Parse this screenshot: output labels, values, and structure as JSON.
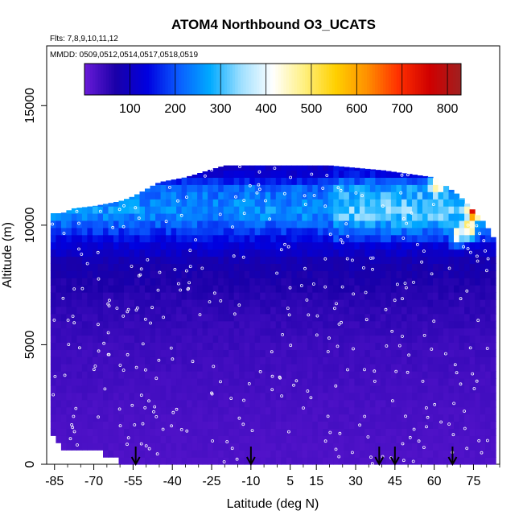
{
  "chart_data": {
    "type": "heatmap",
    "title": "ATOM4 Northbound O3_UCATS",
    "flights_label": "Flts: 7,8,9,10,11,12",
    "dates_label": "MMDD: 0509,0512,0514,0517,0518,0519",
    "xlabel": "Latitude (deg N)",
    "ylabel": "Altitude (m)",
    "xlim": [
      -88,
      85
    ],
    "ylim": [
      0,
      17500
    ],
    "x_ticks": [
      -85,
      -70,
      -55,
      -40,
      -25,
      -10,
      5,
      15,
      30,
      45,
      60,
      75
    ],
    "y_ticks": [
      0,
      5000,
      10000,
      15000
    ],
    "colorbar": {
      "range": [
        0,
        830
      ],
      "ticks": [
        100,
        200,
        300,
        400,
        500,
        600,
        700,
        800
      ],
      "colors": [
        "#6a1bd8",
        "#1a00a8",
        "#0000e0",
        "#0a5cff",
        "#00aaff",
        "#a0e0ff",
        "#ffffff",
        "#fff080",
        "#ffd000",
        "#ff9000",
        "#ff3000",
        "#d00000",
        "#a02020"
      ]
    },
    "arrows_lat": [
      -54,
      -10,
      39,
      45,
      67
    ],
    "coverage_profile": [
      {
        "lat": -86.5,
        "top": 10500,
        "bottom": 1500
      },
      {
        "lat": -82,
        "top": 10500,
        "bottom": 800
      },
      {
        "lat": -78,
        "top": 10700,
        "bottom": 800
      },
      {
        "lat": -70,
        "top": 10800,
        "bottom": 700
      },
      {
        "lat": -60,
        "top": 11000,
        "bottom": 300
      },
      {
        "lat": -55,
        "top": 11200,
        "bottom": 100
      },
      {
        "lat": -45,
        "top": 11800,
        "bottom": 0
      },
      {
        "lat": -35,
        "top": 12000,
        "bottom": 0
      },
      {
        "lat": -20,
        "top": 12500,
        "bottom": 0
      },
      {
        "lat": 0,
        "top": 12500,
        "bottom": 0
      },
      {
        "lat": 20,
        "top": 12500,
        "bottom": 0
      },
      {
        "lat": 40,
        "top": 12300,
        "bottom": 0
      },
      {
        "lat": 60,
        "top": 12000,
        "bottom": 0
      },
      {
        "lat": 70,
        "top": 11200,
        "bottom": 0
      },
      {
        "lat": 80,
        "top": 10000,
        "bottom": 0
      },
      {
        "lat": 82,
        "top": 9500,
        "bottom": 0
      }
    ],
    "o3_by_altitude": [
      {
        "alt": 500,
        "o3": 25
      },
      {
        "alt": 2500,
        "o3": 30
      },
      {
        "alt": 5000,
        "o3": 40
      },
      {
        "alt": 7000,
        "o3": 55
      },
      {
        "alt": 8500,
        "o3": 80
      },
      {
        "alt": 9500,
        "o3": 150
      },
      {
        "alt": 10500,
        "o3": 260
      },
      {
        "alt": 11500,
        "o3": 220
      },
      {
        "alt": 12200,
        "o3": 110
      }
    ],
    "hotspots": [
      {
        "lat": 60,
        "alt": 11500,
        "o3": 520
      },
      {
        "lat": 74,
        "alt": 10500,
        "o3": 750
      },
      {
        "lat": 72,
        "alt": 9800,
        "o3": 600
      },
      {
        "lat": 68,
        "alt": 9500,
        "o3": 450
      }
    ]
  }
}
